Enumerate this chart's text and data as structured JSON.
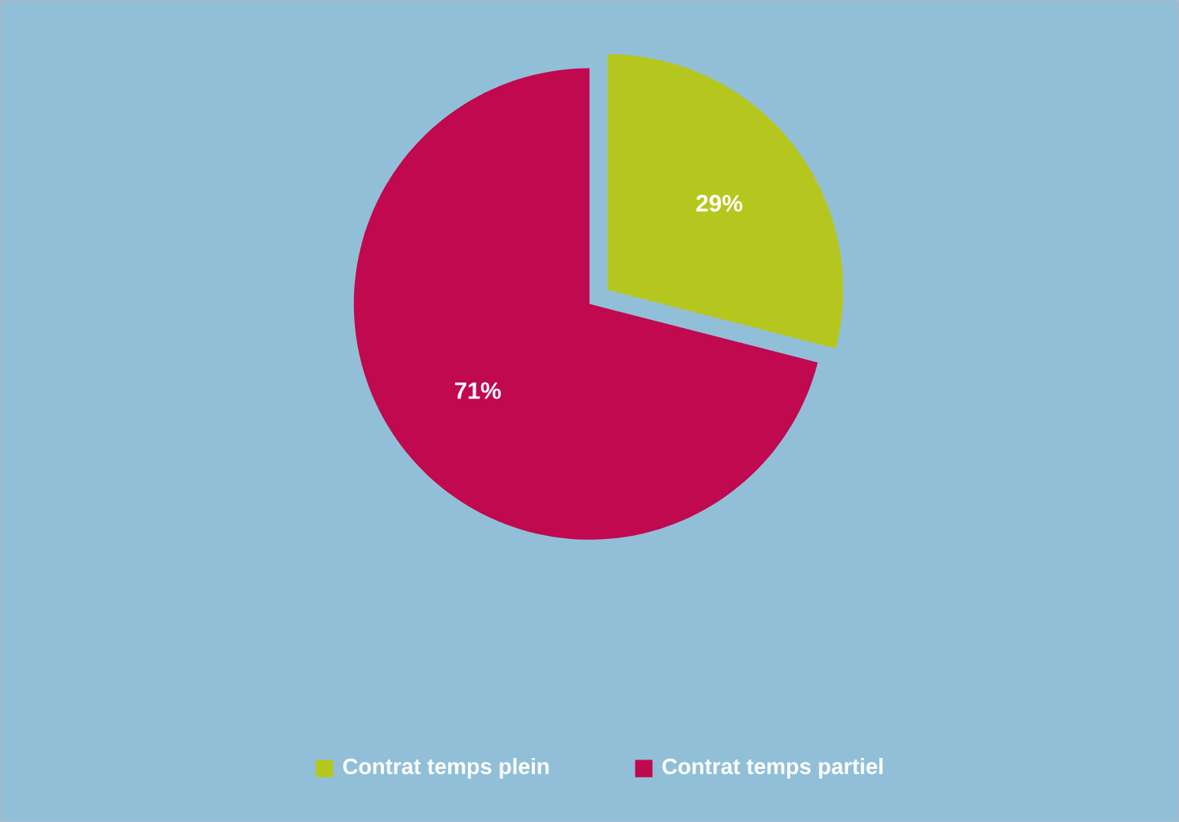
{
  "chart_data": {
    "type": "pie",
    "categories": [
      "Contrat temps plein",
      "Contrat temps partiel"
    ],
    "values": [
      29,
      71
    ],
    "colors": [
      "#b5c71f",
      "#c0094f"
    ],
    "value_labels": [
      "29%",
      "71%"
    ],
    "legend": "bottom"
  }
}
